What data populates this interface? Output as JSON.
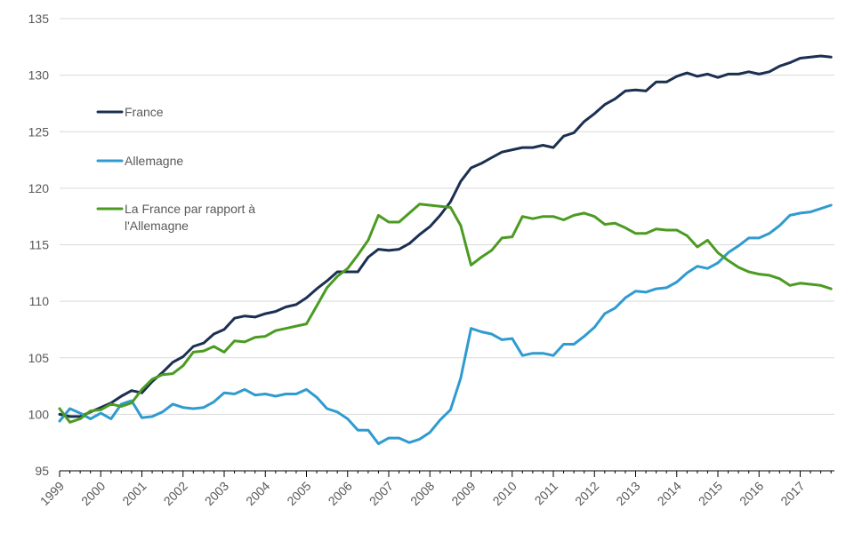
{
  "chart_data": {
    "type": "line",
    "title": "",
    "xlabel": "",
    "ylabel": "",
    "ylim": [
      95,
      135
    ],
    "yticks": [
      95,
      100,
      105,
      110,
      115,
      120,
      125,
      130,
      135
    ],
    "ytick_labels": [
      "95",
      "100",
      "105",
      "110",
      "115",
      "120",
      "125",
      "130",
      "135"
    ],
    "x_range": [
      1999.0,
      2017.83
    ],
    "xtick_labels": [
      "1999",
      "2000",
      "2001",
      "2002",
      "2003",
      "2004",
      "2005",
      "2006",
      "2007",
      "2008",
      "2009",
      "2010",
      "2011",
      "2012",
      "2013",
      "2014",
      "2015",
      "2016",
      "2017"
    ],
    "grid": "horizontal",
    "legend_position": "left",
    "series": [
      {
        "name": "France",
        "color": "#1b2f51",
        "x": [
          1999.0,
          1999.25,
          1999.5,
          1999.75,
          2000.0,
          2000.25,
          2000.5,
          2000.75,
          2001.0,
          2001.25,
          2001.5,
          2001.75,
          2002.0,
          2002.25,
          2002.5,
          2002.75,
          2003.0,
          2003.25,
          2003.5,
          2003.75,
          2004.0,
          2004.25,
          2004.5,
          2004.75,
          2005.0,
          2005.25,
          2005.5,
          2005.75,
          2006.0,
          2006.25,
          2006.5,
          2006.75,
          2007.0,
          2007.25,
          2007.5,
          2007.75,
          2008.0,
          2008.25,
          2008.5,
          2008.75,
          2009.0,
          2009.25,
          2009.5,
          2009.75,
          2010.0,
          2010.25,
          2010.5,
          2010.75,
          2011.0,
          2011.25,
          2011.5,
          2011.75,
          2012.0,
          2012.25,
          2012.5,
          2012.75,
          2013.0,
          2013.25,
          2013.5,
          2013.75,
          2014.0,
          2014.25,
          2014.5,
          2014.75,
          2015.0,
          2015.25,
          2015.5,
          2015.75,
          2016.0,
          2016.25,
          2016.5,
          2016.75,
          2017.0,
          2017.25,
          2017.5,
          2017.75
        ],
        "values": [
          100.0,
          99.8,
          99.8,
          100.2,
          100.6,
          101.0,
          101.6,
          102.1,
          101.9,
          102.9,
          103.7,
          104.6,
          105.1,
          106.0,
          106.3,
          107.1,
          107.5,
          108.5,
          108.7,
          108.6,
          108.9,
          109.1,
          109.5,
          109.7,
          110.3,
          111.1,
          111.8,
          112.6,
          112.6,
          112.6,
          113.9,
          114.6,
          114.5,
          114.6,
          115.1,
          115.9,
          116.6,
          117.6,
          118.8,
          120.6,
          121.8,
          122.2,
          122.7,
          123.2,
          123.4,
          123.6,
          123.6,
          123.8,
          123.6,
          124.6,
          124.9,
          125.9,
          126.6,
          127.4,
          127.9,
          128.6,
          128.7,
          128.6,
          129.4,
          129.4,
          129.9,
          130.2,
          129.9,
          130.1,
          129.8,
          130.1,
          130.1,
          130.3,
          130.1,
          130.3,
          130.8,
          131.1,
          131.5,
          131.6,
          131.7,
          131.6
        ]
      },
      {
        "name": "Allemagne",
        "color": "#2f9bd0",
        "x": [
          1999.0,
          1999.25,
          1999.5,
          1999.75,
          2000.0,
          2000.25,
          2000.5,
          2000.75,
          2001.0,
          2001.25,
          2001.5,
          2001.75,
          2002.0,
          2002.25,
          2002.5,
          2002.75,
          2003.0,
          2003.25,
          2003.5,
          2003.75,
          2004.0,
          2004.25,
          2004.5,
          2004.75,
          2005.0,
          2005.25,
          2005.5,
          2005.75,
          2006.0,
          2006.25,
          2006.5,
          2006.75,
          2007.0,
          2007.25,
          2007.5,
          2007.75,
          2008.0,
          2008.25,
          2008.5,
          2008.75,
          2009.0,
          2009.25,
          2009.5,
          2009.75,
          2010.0,
          2010.25,
          2010.5,
          2010.75,
          2011.0,
          2011.25,
          2011.5,
          2011.75,
          2012.0,
          2012.25,
          2012.5,
          2012.75,
          2013.0,
          2013.25,
          2013.5,
          2013.75,
          2014.0,
          2014.25,
          2014.5,
          2014.75,
          2015.0,
          2015.25,
          2015.5,
          2015.75,
          2016.0,
          2016.25,
          2016.5,
          2016.75,
          2017.0,
          2017.25,
          2017.5,
          2017.75
        ],
        "values": [
          99.4,
          100.5,
          100.1,
          99.6,
          100.1,
          99.6,
          100.9,
          101.2,
          99.7,
          99.8,
          100.2,
          100.9,
          100.6,
          100.5,
          100.6,
          101.1,
          101.9,
          101.8,
          102.2,
          101.7,
          101.8,
          101.6,
          101.8,
          101.8,
          102.2,
          101.5,
          100.5,
          100.2,
          99.6,
          98.6,
          98.6,
          97.4,
          97.9,
          97.9,
          97.5,
          97.8,
          98.4,
          99.5,
          100.4,
          103.2,
          107.6,
          107.3,
          107.1,
          106.6,
          106.7,
          105.2,
          105.4,
          105.4,
          105.2,
          106.2,
          106.2,
          106.9,
          107.7,
          108.9,
          109.4,
          110.3,
          110.9,
          110.8,
          111.1,
          111.2,
          111.7,
          112.5,
          113.1,
          112.9,
          113.4,
          114.3,
          114.9,
          115.6,
          115.6,
          116.0,
          116.7,
          117.6,
          117.8,
          117.9,
          118.2,
          118.5
        ]
      },
      {
        "name": "La France par rapport à l'Allemagne",
        "color": "#4b9b22",
        "x": [
          1999.0,
          1999.25,
          1999.5,
          1999.75,
          2000.0,
          2000.25,
          2000.5,
          2000.75,
          2001.0,
          2001.25,
          2001.5,
          2001.75,
          2002.0,
          2002.25,
          2002.5,
          2002.75,
          2003.0,
          2003.25,
          2003.5,
          2003.75,
          2004.0,
          2004.25,
          2004.5,
          2004.75,
          2005.0,
          2005.25,
          2005.5,
          2005.75,
          2006.0,
          2006.25,
          2006.5,
          2006.75,
          2007.0,
          2007.25,
          2007.5,
          2007.75,
          2008.0,
          2008.25,
          2008.5,
          2008.75,
          2009.0,
          2009.25,
          2009.5,
          2009.75,
          2010.0,
          2010.25,
          2010.5,
          2010.75,
          2011.0,
          2011.25,
          2011.5,
          2011.75,
          2012.0,
          2012.25,
          2012.5,
          2012.75,
          2013.0,
          2013.25,
          2013.5,
          2013.75,
          2014.0,
          2014.25,
          2014.5,
          2014.75,
          2015.0,
          2015.25,
          2015.5,
          2015.75,
          2016.0,
          2016.25,
          2016.5,
          2016.75,
          2017.0,
          2017.25,
          2017.5,
          2017.75
        ],
        "values": [
          100.5,
          99.3,
          99.6,
          100.3,
          100.4,
          100.9,
          100.7,
          101.0,
          102.2,
          103.1,
          103.5,
          103.6,
          104.3,
          105.5,
          105.6,
          106.0,
          105.5,
          106.5,
          106.4,
          106.8,
          106.9,
          107.4,
          107.6,
          107.8,
          108.0,
          109.6,
          111.2,
          112.2,
          112.9,
          114.1,
          115.4,
          117.6,
          117.0,
          117.0,
          117.8,
          118.6,
          118.5,
          118.4,
          118.3,
          116.7,
          113.2,
          113.9,
          114.5,
          115.6,
          115.7,
          117.5,
          117.3,
          117.5,
          117.5,
          117.2,
          117.6,
          117.8,
          117.5,
          116.8,
          116.9,
          116.5,
          116.0,
          116.0,
          116.4,
          116.3,
          116.3,
          115.8,
          114.8,
          115.4,
          114.3,
          113.6,
          113.0,
          112.6,
          112.4,
          112.3,
          112.0,
          111.4,
          111.6,
          111.5,
          111.4,
          111.1
        ]
      }
    ],
    "legend": [
      {
        "lines": [
          "France"
        ],
        "color": "#1b2f51"
      },
      {
        "lines": [
          "Allemagne"
        ],
        "color": "#2f9bd0"
      },
      {
        "lines": [
          "La France par rapport à",
          "l'Allemagne"
        ],
        "color": "#4b9b22"
      }
    ]
  }
}
